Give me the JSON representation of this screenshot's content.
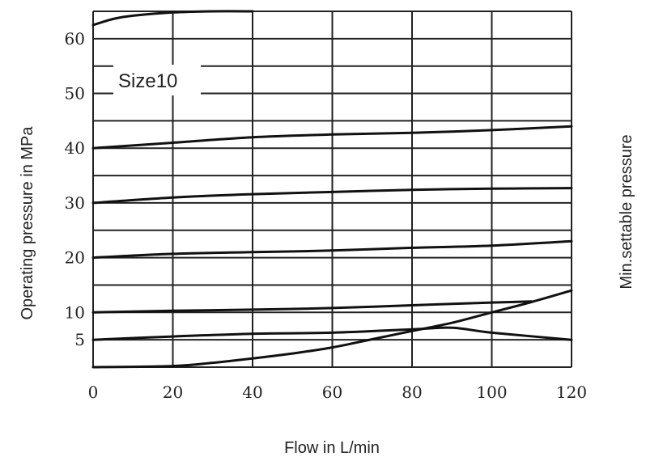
{
  "chart_data": {
    "type": "line",
    "annotation": "Size10",
    "xlabel": "Flow in L/min",
    "ylabel": "Operating pressure in MPa",
    "ylabel_right": "Min.settable pressure",
    "xlim": [
      0,
      120
    ],
    "ylim": [
      0,
      65
    ],
    "x_ticks": [
      0,
      20,
      40,
      60,
      80,
      100,
      120
    ],
    "y_ticks": [
      5,
      10,
      20,
      30,
      40,
      50,
      60
    ],
    "x_ticks_labels": [
      "0",
      "20",
      "40",
      "60",
      "80",
      "100",
      "120"
    ],
    "y_ticks_labels": [
      "5",
      "10",
      "20",
      "30",
      "40",
      "50",
      "60"
    ],
    "grid": true,
    "series": [
      {
        "x": [
          0,
          5,
          10,
          20,
          30,
          40
        ],
        "y": [
          62.5,
          63.6,
          64.2,
          64.8,
          65,
          65
        ]
      },
      {
        "x": [
          0,
          20,
          40,
          60,
          80,
          100,
          120
        ],
        "y": [
          40,
          41,
          42,
          42.5,
          42.8,
          43.3,
          44
        ]
      },
      {
        "x": [
          0,
          20,
          40,
          60,
          80,
          100,
          120
        ],
        "y": [
          30,
          31,
          31.6,
          32,
          32.4,
          32.6,
          32.7
        ]
      },
      {
        "x": [
          0,
          20,
          40,
          60,
          80,
          100,
          120
        ],
        "y": [
          20,
          20.7,
          21,
          21.3,
          21.8,
          22.2,
          23
        ]
      },
      {
        "x": [
          0,
          20,
          40,
          60,
          80,
          100,
          110
        ],
        "y": [
          10,
          10.3,
          10.5,
          10.8,
          11.3,
          11.8,
          12
        ]
      },
      {
        "x": [
          0,
          20,
          40,
          60,
          80,
          90,
          100,
          120
        ],
        "y": [
          5,
          5.6,
          6.1,
          6.3,
          6.9,
          7.2,
          6.3,
          5
        ]
      },
      {
        "x": [
          0,
          20,
          30,
          40,
          50,
          60,
          70,
          80,
          90,
          100,
          110,
          120
        ],
        "y": [
          0,
          0.2,
          0.8,
          1.6,
          2.5,
          3.6,
          5.1,
          6.6,
          8.1,
          10,
          11.9,
          14
        ]
      }
    ]
  }
}
